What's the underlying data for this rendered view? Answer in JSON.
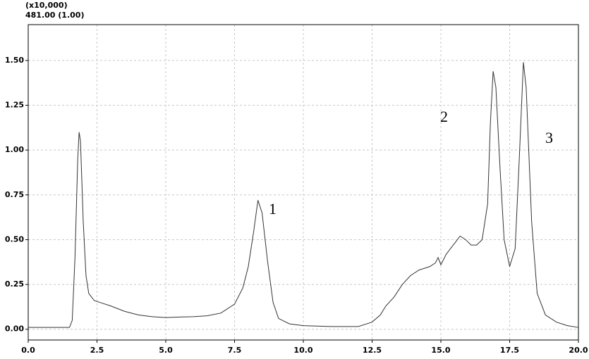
{
  "chart_data": {
    "type": "line",
    "axis_multiplier": "(x10,000)",
    "subtitle": "481.00 (1.00)",
    "annotations": [
      "1",
      "2",
      "3"
    ],
    "x": [
      0,
      1.5,
      1.6,
      1.7,
      1.8,
      1.85,
      1.9,
      2.0,
      2.1,
      2.2,
      2.4,
      2.6,
      3.0,
      3.5,
      4.0,
      4.5,
      5.0,
      5.5,
      6.0,
      6.5,
      7.0,
      7.5,
      7.8,
      8.0,
      8.2,
      8.35,
      8.5,
      8.7,
      8.9,
      9.1,
      9.5,
      10.0,
      11.0,
      12.0,
      12.5,
      12.8,
      13.0,
      13.3,
      13.6,
      13.9,
      14.2,
      14.6,
      14.8,
      14.9,
      15.0,
      15.2,
      15.5,
      15.7,
      15.9,
      16.1,
      16.3,
      16.5,
      16.7,
      16.8,
      16.9,
      17.0,
      17.15,
      17.3,
      17.5,
      17.7,
      17.85,
      18.0,
      18.1,
      18.3,
      18.5,
      18.8,
      19.2,
      19.6,
      20.0
    ],
    "series": [
      {
        "color": "#333333",
        "values": [
          0.01,
          0.01,
          0.05,
          0.4,
          0.95,
          1.1,
          1.05,
          0.6,
          0.3,
          0.2,
          0.16,
          0.15,
          0.13,
          0.1,
          0.08,
          0.07,
          0.065,
          0.068,
          0.07,
          0.075,
          0.09,
          0.14,
          0.23,
          0.35,
          0.55,
          0.72,
          0.65,
          0.38,
          0.15,
          0.06,
          0.03,
          0.02,
          0.015,
          0.015,
          0.04,
          0.08,
          0.13,
          0.18,
          0.25,
          0.3,
          0.33,
          0.35,
          0.37,
          0.4,
          0.36,
          0.42,
          0.48,
          0.52,
          0.5,
          0.47,
          0.47,
          0.5,
          0.7,
          1.15,
          1.44,
          1.35,
          0.9,
          0.5,
          0.35,
          0.45,
          0.95,
          1.49,
          1.35,
          0.6,
          0.2,
          0.08,
          0.04,
          0.02,
          0.01
        ]
      }
    ],
    "xlim": [
      0,
      20
    ],
    "xticks": [
      {
        "value": 0,
        "label": "0.0"
      },
      {
        "value": 2.5,
        "label": "2.5"
      },
      {
        "value": 5,
        "label": "5.0"
      },
      {
        "value": 7.5,
        "label": "7.5"
      },
      {
        "value": 10,
        "label": "10.0"
      },
      {
        "value": 12.5,
        "label": "12.5"
      },
      {
        "value": 15,
        "label": "15.0"
      },
      {
        "value": 17.5,
        "label": "17.5"
      },
      {
        "value": 20,
        "label": "20.0"
      }
    ],
    "ylim": [
      -0.06,
      1.7
    ],
    "yticks": [
      {
        "value": 0,
        "label": "0.00"
      },
      {
        "value": 0.25,
        "label": "0.25"
      },
      {
        "value": 0.5,
        "label": "0.50"
      },
      {
        "value": 0.75,
        "label": "0.75"
      },
      {
        "value": 1,
        "label": "1.00"
      },
      {
        "value": 1.25,
        "label": "1.25"
      },
      {
        "value": 1.5,
        "label": "1.50"
      }
    ],
    "grid": true
  }
}
